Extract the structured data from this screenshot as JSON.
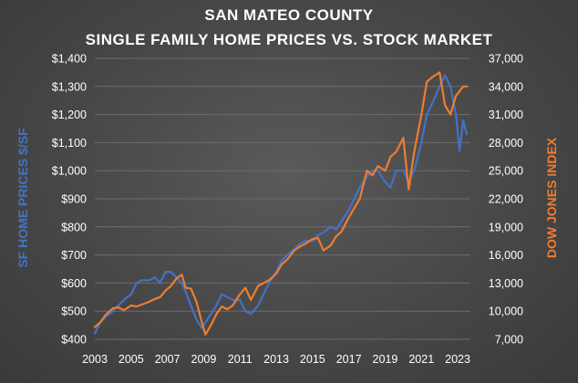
{
  "chart_data": {
    "type": "line",
    "title_lines": [
      "SAN MATEO COUNTY",
      "SINGLE FAMILY HOME PRICES VS. STOCK MARKET"
    ],
    "ylabel_left": "SF HOME PRICES $/SF",
    "ylabel_right": "DOW JONES INDEX",
    "xlim": [
      2003,
      2023.7
    ],
    "ylim_left": [
      400,
      1400
    ],
    "ylim_right": [
      7000,
      37000
    ],
    "x_ticks": [
      "2003",
      "2005",
      "2007",
      "2009",
      "2011",
      "2013",
      "2015",
      "2017",
      "2019",
      "2021",
      "2023"
    ],
    "y_left_ticks": [
      "$400",
      "$500",
      "$600",
      "$700",
      "$800",
      "$900",
      "$1,000",
      "$1,100",
      "$1,200",
      "$1,300",
      "$1,400"
    ],
    "y_right_ticks": [
      "7,000",
      "10,000",
      "13,000",
      "16,000",
      "19,000",
      "22,000",
      "25,000",
      "28,000",
      "31,000",
      "34,000",
      "37,000"
    ],
    "grid": true,
    "series": [
      {
        "axis": "left",
        "color": "#4472c4",
        "x": [
          2003.0,
          2003.3,
          2003.6,
          2004.0,
          2004.3,
          2004.6,
          2005.0,
          2005.3,
          2005.6,
          2006.0,
          2006.3,
          2006.6,
          2006.9,
          2007.2,
          2007.5,
          2007.8,
          2008.0,
          2008.3,
          2008.6,
          2008.9,
          2009.1,
          2009.4,
          2009.7,
          2010.0,
          2010.3,
          2010.6,
          2011.0,
          2011.3,
          2011.6,
          2012.0,
          2012.3,
          2012.6,
          2013.0,
          2013.3,
          2013.6,
          2014.0,
          2014.3,
          2014.6,
          2015.0,
          2015.3,
          2015.6,
          2016.0,
          2016.3,
          2016.6,
          2017.0,
          2017.3,
          2017.6,
          2018.0,
          2018.3,
          2018.6,
          2019.0,
          2019.3,
          2019.6,
          2020.0,
          2020.3,
          2020.6,
          2021.0,
          2021.3,
          2021.6,
          2022.0,
          2022.3,
          2022.6,
          2022.9,
          2023.1,
          2023.3,
          2023.5
        ],
        "values": [
          420,
          460,
          480,
          500,
          520,
          540,
          560,
          600,
          610,
          610,
          620,
          600,
          640,
          640,
          620,
          600,
          570,
          520,
          470,
          440,
          460,
          490,
          520,
          560,
          550,
          540,
          540,
          500,
          490,
          520,
          560,
          600,
          640,
          680,
          700,
          720,
          740,
          750,
          750,
          770,
          780,
          800,
          790,
          820,
          860,
          900,
          940,
          980,
          1000,
          1000,
          960,
          940,
          1000,
          1000,
          960,
          1000,
          1100,
          1200,
          1240,
          1300,
          1340,
          1300,
          1200,
          1070,
          1180,
          1130
        ]
      },
      {
        "axis": "right",
        "color": "#ed7d31",
        "x": [
          2003.0,
          2003.3,
          2003.6,
          2004.0,
          2004.3,
          2004.6,
          2005.0,
          2005.3,
          2005.6,
          2006.0,
          2006.3,
          2006.6,
          2006.9,
          2007.2,
          2007.5,
          2007.8,
          2008.0,
          2008.3,
          2008.6,
          2008.9,
          2009.1,
          2009.4,
          2009.7,
          2010.0,
          2010.3,
          2010.6,
          2011.0,
          2011.3,
          2011.6,
          2012.0,
          2012.3,
          2012.6,
          2013.0,
          2013.3,
          2013.6,
          2014.0,
          2014.3,
          2014.6,
          2015.0,
          2015.3,
          2015.6,
          2016.0,
          2016.3,
          2016.6,
          2017.0,
          2017.3,
          2017.6,
          2018.0,
          2018.3,
          2018.6,
          2019.0,
          2019.3,
          2019.6,
          2020.0,
          2020.3,
          2020.6,
          2021.0,
          2021.3,
          2021.6,
          2022.0,
          2022.3,
          2022.6,
          2022.9,
          2023.1,
          2023.3,
          2023.5
        ],
        "values": [
          8300,
          8800,
          9600,
          10300,
          10400,
          10100,
          10600,
          10500,
          10700,
          11000,
          11300,
          11500,
          12200,
          12700,
          13500,
          13900,
          12500,
          12400,
          11000,
          8800,
          7500,
          8500,
          9700,
          10500,
          10200,
          10600,
          11800,
          12500,
          11200,
          12700,
          13000,
          13300,
          14000,
          15000,
          15500,
          16500,
          16900,
          17200,
          17700,
          17800,
          16500,
          17000,
          18000,
          18500,
          20000,
          21000,
          22000,
          25000,
          24500,
          25500,
          25000,
          26500,
          27000,
          28500,
          23000,
          27000,
          31000,
          34500,
          35000,
          35500,
          32000,
          31000,
          33000,
          33500,
          34000,
          34000
        ]
      }
    ]
  }
}
